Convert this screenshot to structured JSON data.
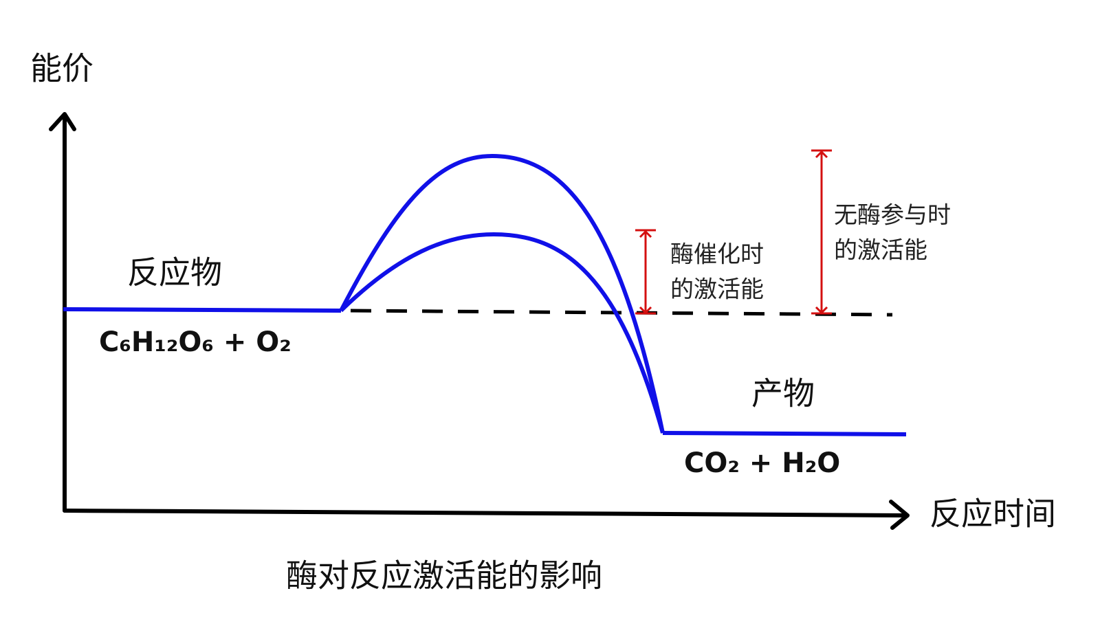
{
  "axes": {
    "y_label": "能价",
    "x_label": "反应时间"
  },
  "labels": {
    "reactant": "反应物",
    "reactant_formula": "C₆H₁₂O₆ + O₂",
    "product": "产物",
    "product_formula": "CO₂ + H₂O"
  },
  "annotations": [
    {
      "lines": [
        "酶催化时",
        "的激活能"
      ]
    },
    {
      "lines": [
        "无酶参与时",
        "的激活能"
      ]
    }
  ],
  "caption": "酶对反应激活能的影响"
}
